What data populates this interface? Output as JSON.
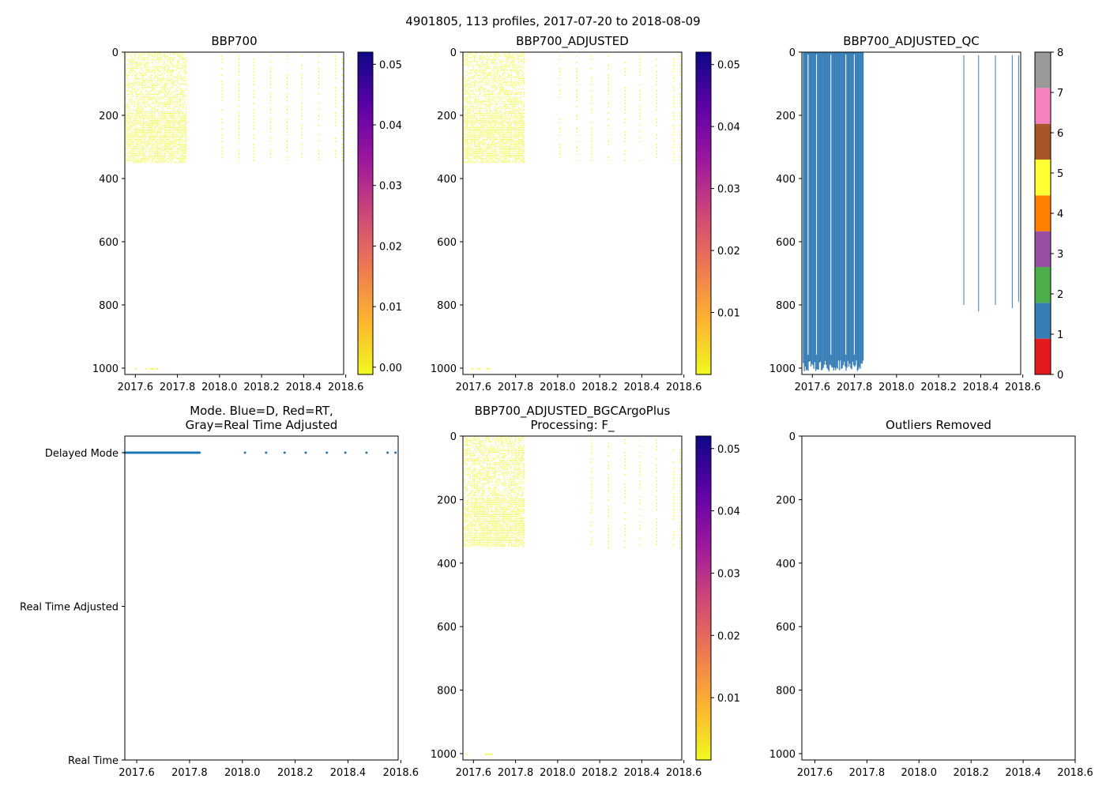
{
  "figure": {
    "suptitle": "4901805, 113 profiles, 2017-07-20 to 2018-08-09"
  },
  "colors": {
    "qc_blue": "#377eb8",
    "mode_blue": "#1f77b4",
    "data_yellow": "#f0f921",
    "plasma": [
      "#f0f921",
      "#fdb42f",
      "#ed7953",
      "#cc4778",
      "#9c179e",
      "#5c01a6",
      "#0d0887"
    ],
    "qc_colormap": [
      "#e41a1c",
      "#377eb8",
      "#4daf4a",
      "#984ea3",
      "#ff7f00",
      "#ffff33",
      "#a65628",
      "#f781bf",
      "#999999"
    ]
  },
  "chart_data": [
    {
      "id": "bbp700",
      "type": "heatmap",
      "title": "BBP700",
      "x_ticks": [
        "2017.6",
        "2017.8",
        "2018.0",
        "2018.2",
        "2018.4",
        "2018.6"
      ],
      "y_ticks": [
        "0",
        "200",
        "400",
        "600",
        "800",
        "1000"
      ],
      "xlim": [
        2017.55,
        2018.59
      ],
      "ylim": [
        1020,
        0
      ],
      "colorbar": {
        "ticks": [
          "0.00",
          "0.01",
          "0.02",
          "0.03",
          "0.04",
          "0.05"
        ],
        "range": [
          -0.0012,
          0.052
        ]
      },
      "dense_block": {
        "x_start": 2017.555,
        "x_end": 2017.84,
        "depth_max": 350
      },
      "sparse_profiles_x": [
        2018.01,
        2018.09,
        2018.16,
        2018.24,
        2018.32,
        2018.39,
        2018.47,
        2018.55,
        2018.58
      ],
      "sparse_depth_max": 350
    },
    {
      "id": "bbp700_adjusted",
      "type": "heatmap",
      "title": "BBP700_ADJUSTED",
      "x_ticks": [
        "2017.6",
        "2017.8",
        "2018.0",
        "2018.2",
        "2018.4",
        "2018.6"
      ],
      "y_ticks": [
        "0",
        "200",
        "400",
        "600",
        "800",
        "1000"
      ],
      "xlim": [
        2017.55,
        2018.59
      ],
      "ylim": [
        1020,
        0
      ],
      "colorbar": {
        "ticks": [
          "0.01",
          "0.02",
          "0.03",
          "0.04",
          "0.05"
        ],
        "range": [
          0.0,
          0.052
        ]
      },
      "dense_block": {
        "x_start": 2017.555,
        "x_end": 2017.84,
        "depth_max": 350
      },
      "sparse_profiles_x": [
        2018.01,
        2018.09,
        2018.16,
        2018.24,
        2018.32,
        2018.39,
        2018.47,
        2018.55,
        2018.58
      ],
      "sparse_depth_max": 350
    },
    {
      "id": "bbp700_adjusted_qc",
      "type": "heatmap",
      "title": "BBP700_ADJUSTED_QC",
      "x_ticks": [
        "2017.6",
        "2017.8",
        "2018.0",
        "2018.2",
        "2018.4",
        "2018.6"
      ],
      "y_ticks": [
        "0",
        "200",
        "400",
        "600",
        "800",
        "1000"
      ],
      "xlim": [
        2017.55,
        2018.59
      ],
      "ylim": [
        1020,
        0
      ],
      "colorbar": {
        "ticks": [
          "0",
          "1",
          "2",
          "3",
          "4",
          "5",
          "6",
          "7",
          "8"
        ],
        "range": [
          0,
          8
        ]
      },
      "qc_block": {
        "x_start": 2017.555,
        "x_end": 2017.84,
        "depth_max": 1000,
        "value": 1
      },
      "qc_lines": [
        {
          "x": 2018.32,
          "depth_max": 800
        },
        {
          "x": 2018.39,
          "depth_max": 820
        },
        {
          "x": 2018.47,
          "depth_max": 800
        },
        {
          "x": 2018.55,
          "depth_max": 810
        },
        {
          "x": 2018.58,
          "depth_max": 790
        }
      ]
    },
    {
      "id": "mode",
      "type": "scatter",
      "title_line1": "Mode. Blue=D, Red=RT,",
      "title_line2": "Gray=Real Time Adjusted",
      "x_ticks": [
        "2017.6",
        "2017.8",
        "2018.0",
        "2018.2",
        "2018.4",
        "2018.6"
      ],
      "xlim": [
        2017.555,
        2018.59
      ],
      "y_categories": [
        "Real Time",
        "Real Time Adjusted",
        "Delayed Mode"
      ],
      "dense_range": {
        "x_start": 2017.555,
        "x_end": 2017.84,
        "mode": "Delayed Mode"
      },
      "sparse_points": [
        {
          "x": 2018.01,
          "mode": "Delayed Mode"
        },
        {
          "x": 2018.09,
          "mode": "Delayed Mode"
        },
        {
          "x": 2018.16,
          "mode": "Delayed Mode"
        },
        {
          "x": 2018.24,
          "mode": "Delayed Mode"
        },
        {
          "x": 2018.32,
          "mode": "Delayed Mode"
        },
        {
          "x": 2018.39,
          "mode": "Delayed Mode"
        },
        {
          "x": 2018.47,
          "mode": "Delayed Mode"
        },
        {
          "x": 2018.55,
          "mode": "Delayed Mode"
        },
        {
          "x": 2018.58,
          "mode": "Delayed Mode"
        }
      ]
    },
    {
      "id": "bbp700_bgcargoplus",
      "type": "heatmap",
      "title_line1": "BBP700_ADJUSTED_BGCArgoPlus",
      "title_line2": "Processing: F_",
      "x_ticks": [
        "2017.6",
        "2017.8",
        "2018.0",
        "2018.2",
        "2018.4",
        "2018.6"
      ],
      "y_ticks": [
        "0",
        "200",
        "400",
        "600",
        "800",
        "1000"
      ],
      "xlim": [
        2017.55,
        2018.59
      ],
      "ylim": [
        1020,
        0
      ],
      "colorbar": {
        "ticks": [
          "0.01",
          "0.02",
          "0.03",
          "0.04",
          "0.05"
        ],
        "range": [
          0.0,
          0.052
        ]
      },
      "dense_block": {
        "x_start": 2017.555,
        "x_end": 2017.84,
        "depth_max": 350
      },
      "sparse_profiles_x": [
        2018.16,
        2018.24,
        2018.32,
        2018.39,
        2018.47,
        2018.55,
        2018.58
      ],
      "sparse_depth_max": 350
    },
    {
      "id": "outliers",
      "type": "scatter",
      "title": "Outliers Removed",
      "x_ticks": [
        "2017.6",
        "2017.8",
        "2018.0",
        "2018.2",
        "2018.4",
        "2018.6"
      ],
      "y_ticks": [
        "0",
        "200",
        "400",
        "600",
        "800",
        "1000"
      ],
      "xlim": [
        2017.55,
        2018.6
      ],
      "ylim": [
        1020,
        0
      ],
      "points": []
    }
  ]
}
